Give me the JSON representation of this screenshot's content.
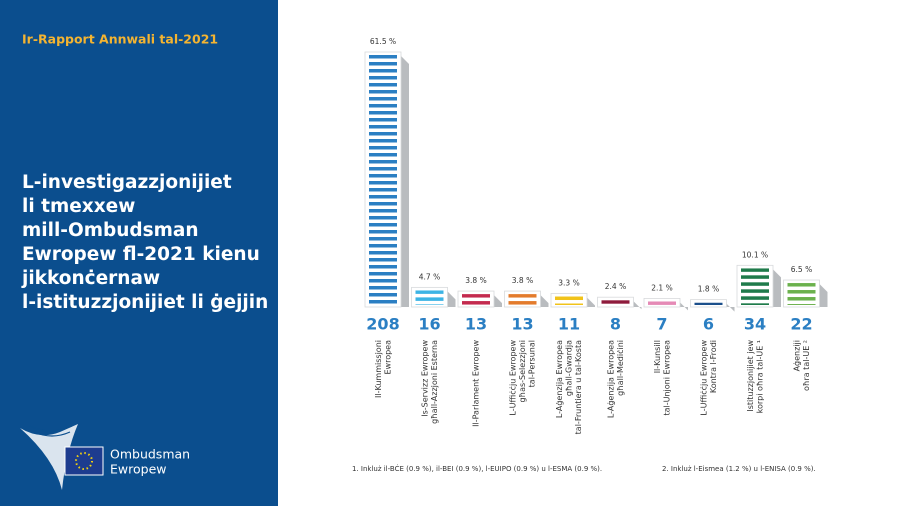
{
  "header": {
    "title": "Ir-Rapport Annwali tal-2021"
  },
  "heading": [
    "L-investigazzjonijiet",
    "li tmexxew",
    "mill-Ombudsman",
    "Ewropew fl-2021 kienu",
    "jikkonċernaw",
    "l-istituzzjonijiet li ġejjin"
  ],
  "logo": [
    "Ombudsman",
    "Ewropew"
  ],
  "chart_data": {
    "type": "bar",
    "categories": [
      [
        "Il-Kummissjoni",
        "Ewropea"
      ],
      [
        "Is-Servizz Ewropew",
        "għall-Azzjoni Esterna"
      ],
      [
        "Il-Parlament Ewropew"
      ],
      [
        "L-Uffiċċju Ewropew",
        "għas-Selezzjoni",
        "tal-Persunal"
      ],
      [
        "L-Aġenzija Ewropea",
        "għall-Gwardja",
        "tal-Fruntiera u tal-Kosta"
      ],
      [
        "L-Aġenzija Ewropea",
        "għall-Mediċini"
      ],
      [
        "Il-Kunsill",
        "tal-Unjoni Ewropea"
      ],
      [
        "L-Uffiċċju Ewropew",
        "Kontra l-Frodi"
      ],
      [
        "Istituzzjonijiet jew",
        "korpi oħra tal-UE ¹"
      ],
      [
        "Aġenziji",
        "oħra tal-UE ²"
      ]
    ],
    "values": [
      208,
      16,
      13,
      13,
      11,
      8,
      7,
      6,
      34,
      22
    ],
    "share_labels": [
      "61.5 %",
      "4.7 %",
      "3.8 %",
      "3.8 %",
      "3.3 %",
      "2.4 %",
      "2.1 %",
      "1.8 %",
      "10.1 %",
      "6.5 %"
    ],
    "colors": [
      "#2b7fc3",
      "#3cb4e5",
      "#c32a4e",
      "#e37b2c",
      "#f1c31a",
      "#8e1b3c",
      "#e58ab6",
      "#1b4f8b",
      "#1f7b4b",
      "#6bb14d"
    ],
    "ylim": [
      0,
      208
    ],
    "footnotes": [
      "1.  Inkluż il-BĊE (0.9 %), il-BEI (0.9 %), l-EUIPO (0.9 %) u l-ESMA (0.9 %).",
      "2.  Inkluż l-Eismea (1.2 %) u l-ENISA (0.9 %)."
    ]
  }
}
